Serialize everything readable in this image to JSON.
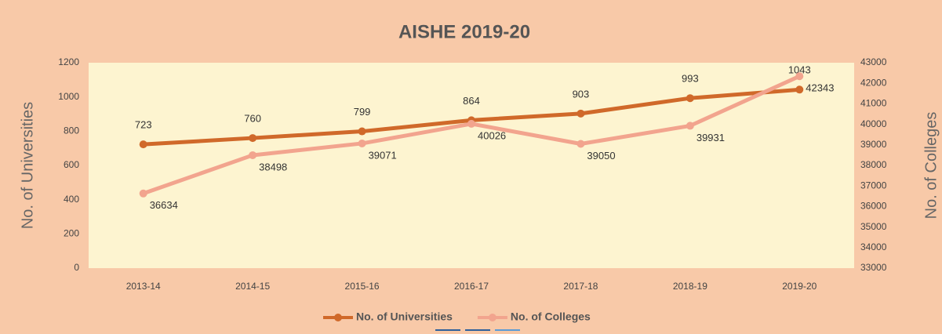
{
  "chart_data": {
    "type": "line",
    "title": "AISHE 2019-20",
    "categories": [
      "2013-14",
      "2014-15",
      "2015-16",
      "2016-17",
      "2017-18",
      "2018-19",
      "2019-20"
    ],
    "series": [
      {
        "name": "No. of Universities",
        "color": "#d0692a",
        "values": [
          723,
          760,
          799,
          864,
          903,
          993,
          1043
        ]
      },
      {
        "name": "No. of Colleges",
        "color": "#f2a48e",
        "axis": "y2",
        "values": [
          36634,
          38498,
          39071,
          40026,
          39050,
          39931,
          42343
        ]
      }
    ],
    "ylabel": "No. of Universities",
    "y2label": "No. of Colleges",
    "ylim": [
      0,
      1200
    ],
    "yticks": [
      0,
      200,
      400,
      600,
      800,
      1000,
      1200
    ],
    "y2lim": [
      33000,
      43000
    ],
    "y2ticks": [
      33000,
      34000,
      35000,
      36000,
      37000,
      38000,
      39000,
      40000,
      41000,
      42000,
      43000
    ],
    "legend": "bottom"
  }
}
